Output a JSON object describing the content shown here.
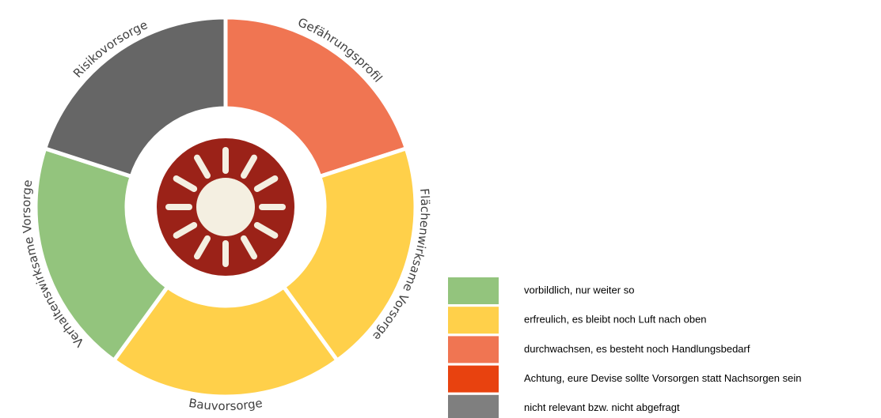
{
  "segments": [
    {
      "label": "Gefährungsprofil"
    },
    {
      "label": "Flächenwirksame Vorsorge"
    },
    {
      "label": "Bauvorsorge"
    },
    {
      "label": "Verhaltenswirksame Vorsorge"
    },
    {
      "label": "Risikovorsorge"
    }
  ],
  "legend": [
    {
      "text": "vorbildlich, nur weiter so"
    },
    {
      "text": "erfreulich, es bleibt noch Luft nach oben"
    },
    {
      "text": "durchwachsen, es besteht noch Handlungsbedarf"
    },
    {
      "text": "Achtung, eure Devise sollte Vorsorgen statt Nachsorgen sein"
    },
    {
      "text": "nicht relevant bzw. nicht abgefragt"
    }
  ]
}
